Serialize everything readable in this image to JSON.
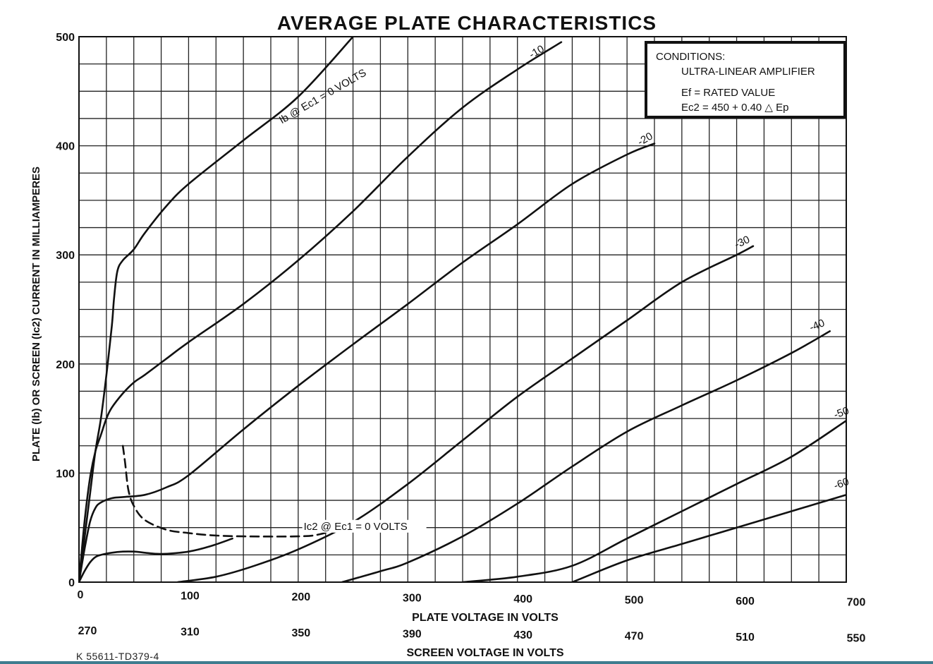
{
  "chart_data": {
    "type": "line",
    "title": "AVERAGE PLATE CHARACTERISTICS",
    "xlabel": "PLATE VOLTAGE IN VOLTS",
    "x2label": "SCREEN VOLTAGE IN VOLTS",
    "ylabel": "PLATE (Ib) OR SCREEN (Ic2) CURRENT IN MILLIAMPERES",
    "xlim": [
      0,
      700
    ],
    "ylim": [
      0,
      500
    ],
    "grid": true,
    "x_ticks": [
      0,
      100,
      200,
      300,
      400,
      500,
      600,
      700
    ],
    "y_ticks": [
      0,
      100,
      200,
      300,
      400,
      500
    ],
    "x2_ticks": [
      270,
      310,
      350,
      390,
      430,
      470,
      510,
      550
    ],
    "conditions": {
      "heading": "CONDITIONS:",
      "line1": "ULTRA-LINEAR AMPLIFIER",
      "line2": "Ef = RATED VALUE",
      "line3": "Ec2 = 450 + 0.40 △ Ep"
    },
    "series": [
      {
        "name": "Ib @ Ec1 = 0 VOLTS",
        "style": "solid",
        "label_pos": [
          185,
          420
        ],
        "label_angle": -30,
        "x": [
          0,
          5,
          10,
          15,
          20,
          25,
          30,
          32,
          35,
          40,
          50,
          60,
          80,
          100,
          150,
          200,
          250
        ],
        "y": [
          0,
          40,
          80,
          120,
          150,
          190,
          235,
          260,
          285,
          295,
          305,
          320,
          345,
          365,
          405,
          445,
          500
        ]
      },
      {
        "name": "-10",
        "style": "solid",
        "label_pos": [
          413,
          480
        ],
        "label_angle": -30,
        "x": [
          0,
          5,
          10,
          15,
          20,
          25,
          30,
          40,
          50,
          60,
          80,
          100,
          150,
          200,
          250,
          300,
          350,
          400,
          440
        ],
        "y": [
          0,
          55,
          95,
          120,
          135,
          150,
          160,
          173,
          183,
          190,
          205,
          220,
          255,
          295,
          340,
          390,
          435,
          470,
          495
        ]
      },
      {
        "name": "-20",
        "style": "solid",
        "label_pos": [
          512,
          400
        ],
        "label_angle": -30,
        "x": [
          0,
          5,
          10,
          15,
          20,
          30,
          40,
          60,
          80,
          100,
          150,
          200,
          250,
          300,
          350,
          400,
          450,
          500,
          525
        ],
        "y": [
          0,
          30,
          55,
          68,
          73,
          77,
          78,
          80,
          87,
          98,
          140,
          180,
          218,
          255,
          293,
          328,
          365,
          392,
          402
        ]
      },
      {
        "name": "-30",
        "style": "solid",
        "label_pos": [
          600,
          306
        ],
        "label_angle": -25,
        "x": [
          90,
          125,
          160,
          200,
          250,
          300,
          350,
          400,
          450,
          500,
          550,
          600,
          615
        ],
        "y": [
          0,
          5,
          15,
          30,
          55,
          90,
          130,
          170,
          205,
          240,
          275,
          300,
          308
        ]
      },
      {
        "name": "-40",
        "style": "solid",
        "label_pos": [
          668,
          230
        ],
        "label_angle": -22,
        "x": [
          240,
          275,
          300,
          350,
          400,
          450,
          500,
          550,
          600,
          650,
          685
        ],
        "y": [
          0,
          10,
          18,
          42,
          72,
          106,
          138,
          162,
          185,
          210,
          230
        ]
      },
      {
        "name": "-50",
        "style": "solid",
        "label_pos": [
          690,
          150
        ],
        "label_angle": -20,
        "x": [
          350,
          400,
          450,
          500,
          550,
          600,
          650,
          700
        ],
        "y": [
          0,
          5,
          15,
          40,
          65,
          90,
          115,
          148
        ]
      },
      {
        "name": "-60",
        "style": "solid",
        "label_pos": [
          690,
          85
        ],
        "label_angle": -20,
        "x": [
          350,
          400,
          450,
          500,
          550,
          600,
          650,
          700
        ],
        "y": [
          -40,
          -20,
          0,
          20,
          35,
          50,
          65,
          80
        ]
      },
      {
        "name": "",
        "style": "solid",
        "x": [
          0,
          5,
          10,
          15,
          20,
          30,
          40,
          50,
          60,
          70,
          80,
          100,
          120,
          140
        ],
        "y": [
          0,
          10,
          18,
          23,
          25,
          27,
          28,
          28,
          27,
          26,
          26,
          28,
          33,
          40
        ]
      },
      {
        "name": "Ic2 @ Ec1 = 0 VOLTS",
        "style": "dashed",
        "label_pos": [
          205,
          48
        ],
        "label_angle": 0,
        "x": [
          40,
          42,
          45,
          50,
          60,
          80,
          100,
          120,
          150,
          200,
          220,
          240,
          250
        ],
        "y": [
          125,
          110,
          85,
          70,
          57,
          48,
          45,
          43,
          42,
          42,
          44,
          51,
          58
        ]
      }
    ]
  },
  "footer": {
    "code": "K 55611-TD379-4"
  }
}
